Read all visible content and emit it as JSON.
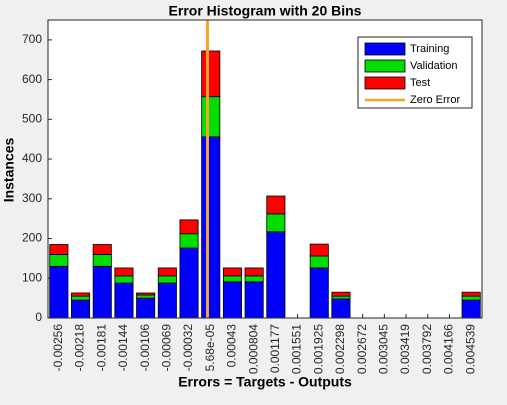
{
  "chart_data": {
    "type": "bar",
    "stacked": true,
    "title": "Error Histogram with 20 Bins",
    "x_label": "Errors = Targets - Outputs",
    "y_label": "Instances",
    "categories": [
      "-0.00256",
      "-0.00218",
      "-0.00181",
      "-0.00144",
      "-0.00106",
      "-0.00069",
      "-0.00032",
      "5.68e-05",
      "0.00043",
      "0.000804",
      "0.001177",
      "0.001551",
      "0.001925",
      "0.002298",
      "0.002672",
      "0.003045",
      "0.003419",
      "0.003792",
      "0.004166",
      "0.004539"
    ],
    "series": [
      {
        "name": "Training",
        "color": "#0000ff",
        "values": [
          130,
          45,
          130,
          88,
          50,
          88,
          176,
          456,
          91,
          91,
          217,
          0,
          126,
          48,
          0,
          0,
          0,
          0,
          0,
          45
        ]
      },
      {
        "name": "Validation",
        "color": "#00dd00",
        "values": [
          30,
          10,
          30,
          18,
          8,
          18,
          36,
          101,
          15,
          15,
          45,
          0,
          30,
          7,
          0,
          0,
          0,
          0,
          0,
          10
        ]
      },
      {
        "name": "Test",
        "color": "#ff0000",
        "values": [
          25,
          8,
          25,
          20,
          5,
          20,
          35,
          115,
          20,
          20,
          45,
          0,
          30,
          10,
          0,
          0,
          0,
          0,
          0,
          10
        ]
      }
    ],
    "zero_error": {
      "name": "Zero Error",
      "color": "#f5a623",
      "value": 0
    },
    "ylim": [
      0,
      750
    ],
    "yticks": [
      0,
      100,
      200,
      300,
      400,
      500,
      600,
      700
    ],
    "legend": "upper right"
  }
}
